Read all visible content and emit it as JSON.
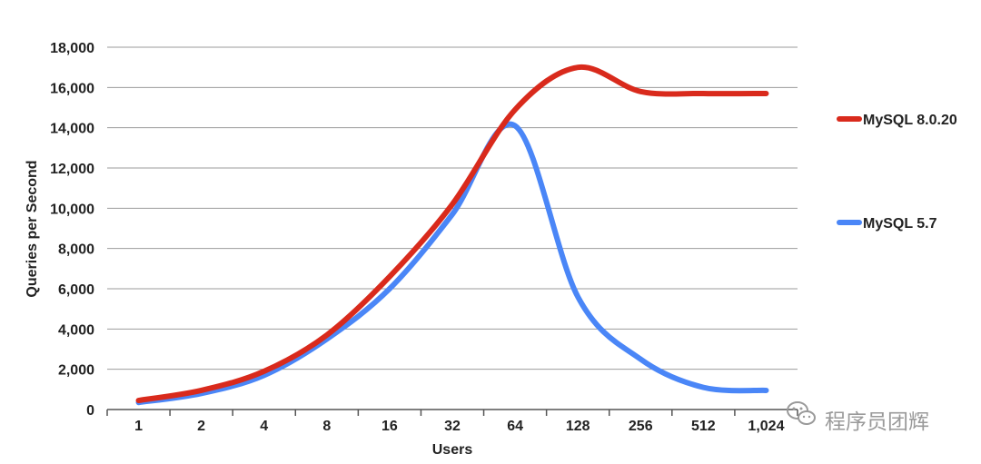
{
  "chart_data": {
    "type": "line",
    "title": "",
    "xlabel": "Users",
    "ylabel": "Queries per Second",
    "categories": [
      "1",
      "2",
      "4",
      "8",
      "16",
      "32",
      "64",
      "128",
      "256",
      "512",
      "1,024"
    ],
    "yticks": [
      "0",
      "2,000",
      "4,000",
      "6,000",
      "8,000",
      "10,000",
      "12,000",
      "14,000",
      "16,000",
      "18,000"
    ],
    "ylim": [
      0,
      18000
    ],
    "grid": "horizontal",
    "legend_position": "right",
    "series": [
      {
        "name": "MySQL 8.0.20",
        "color": "#d92a1c",
        "values": [
          450,
          950,
          1900,
          3700,
          6600,
          10200,
          14900,
          17000,
          15800,
          15700,
          15700
        ]
      },
      {
        "name": "MySQL 5.7",
        "color": "#4a86f7",
        "values": [
          350,
          800,
          1700,
          3500,
          6000,
          9700,
          14100,
          5600,
          2500,
          1100,
          950
        ]
      }
    ]
  },
  "watermark": {
    "text": "程序员团辉",
    "icon": "wechat-icon"
  }
}
